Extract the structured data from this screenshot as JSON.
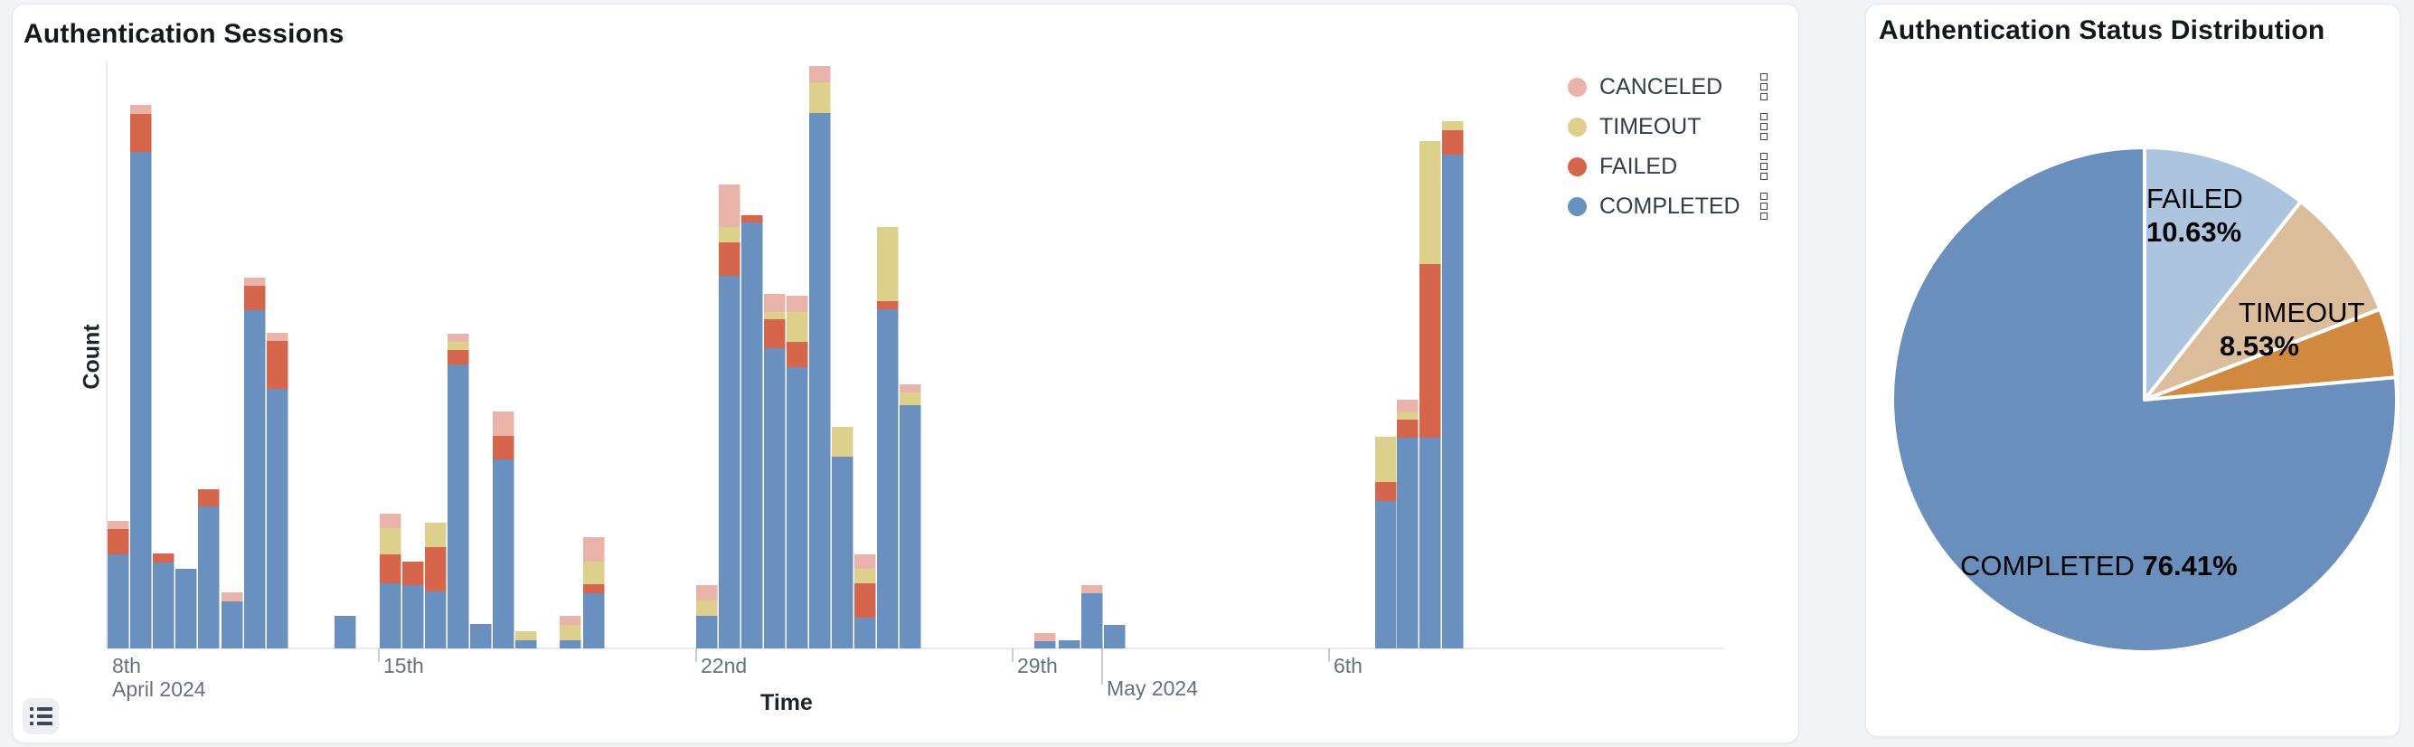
{
  "page": {
    "background": "#f1f3f6"
  },
  "left_card": {
    "title": "Authentication Sessions",
    "y_axis_label": "Count",
    "x_axis_label": "Time",
    "legend": [
      {
        "label": "CANCELED",
        "color": "#e9b3a9"
      },
      {
        "label": "TIMEOUT",
        "color": "#ddd08d"
      },
      {
        "label": "FAILED",
        "color": "#d5664c"
      },
      {
        "label": "COMPLETED",
        "color": "#6a90bf"
      }
    ],
    "legend_menu_icon": "stacked-squares-kebab-icon",
    "list_toggle_icon": "unordered-list-icon",
    "chart_data": {
      "type": "bar",
      "stacked": true,
      "title": "Authentication Sessions",
      "xlabel": "Time",
      "ylabel": "Count",
      "y_axis_unlabeled": true,
      "note": "y values are proportional counts read from pixel heights; x bins are 12-hour periods",
      "plot": {
        "axis_x": 104,
        "baseline_y": 712,
        "plot_right": 1892,
        "plot_top": 58,
        "bar_width": 23.5,
        "axis_color": "#e7e9ed"
      },
      "series_bottom_to_top": [
        "COMPLETED",
        "FAILED",
        "TIMEOUT",
        "CANCELED"
      ],
      "series_colors": {
        "COMPLETED": "#6a90bf",
        "FAILED": "#d5664c",
        "TIMEOUT": "#ddd08d",
        "CANCELED": "#e9b3a9"
      },
      "x_ticks": [
        {
          "x": 105,
          "label": "8th",
          "sublabel": "April 2024",
          "mark": false,
          "long": false
        },
        {
          "x": 405,
          "label": "15th",
          "sublabel": "",
          "mark": true,
          "long": false
        },
        {
          "x": 756,
          "label": "22nd",
          "sublabel": "",
          "mark": true,
          "long": false
        },
        {
          "x": 1106,
          "label": "29th",
          "sublabel": "",
          "mark": true,
          "long": false
        },
        {
          "x": 1205,
          "label": "May 2024",
          "sublabel": "",
          "mark": true,
          "long": true
        },
        {
          "x": 1456,
          "label": "6th",
          "sublabel": "",
          "mark": true,
          "long": false
        }
      ],
      "tick_text_color": "#667082",
      "bars": [
        {
          "x": 105,
          "time": "2024-04-09 00:00",
          "COMPLETED": 104,
          "FAILED": 28,
          "TIMEOUT": 0,
          "CANCELED": 9
        },
        {
          "x": 130,
          "time": "2024-04-09 12:00",
          "COMPLETED": 549,
          "FAILED": 42,
          "TIMEOUT": 0,
          "CANCELED": 10
        },
        {
          "x": 155,
          "time": "2024-04-10 00:00",
          "COMPLETED": 95,
          "FAILED": 10,
          "TIMEOUT": 0,
          "CANCELED": 0
        },
        {
          "x": 180,
          "time": "2024-04-10 12:00",
          "COMPLETED": 88,
          "FAILED": 0,
          "TIMEOUT": 0,
          "CANCELED": 0
        },
        {
          "x": 205,
          "time": "2024-04-11 00:00",
          "COMPLETED": 157,
          "FAILED": 19,
          "TIMEOUT": 0,
          "CANCELED": 0
        },
        {
          "x": 231,
          "time": "2024-04-11 12:00",
          "COMPLETED": 52,
          "FAILED": 0,
          "TIMEOUT": 0,
          "CANCELED": 10
        },
        {
          "x": 256,
          "time": "2024-04-12 00:00",
          "COMPLETED": 374,
          "FAILED": 27,
          "TIMEOUT": 0,
          "CANCELED": 9
        },
        {
          "x": 281,
          "time": "2024-04-12 12:00",
          "COMPLETED": 287,
          "FAILED": 53,
          "TIMEOUT": 0,
          "CANCELED": 9
        },
        {
          "x": 356,
          "time": "2024-04-14 00:00",
          "COMPLETED": 36,
          "FAILED": 0,
          "TIMEOUT": 0,
          "CANCELED": 0
        },
        {
          "x": 406,
          "time": "2024-04-15 00:00",
          "COMPLETED": 72,
          "FAILED": 32,
          "TIMEOUT": 29,
          "CANCELED": 16
        },
        {
          "x": 431,
          "time": "2024-04-15 12:00",
          "COMPLETED": 70,
          "FAILED": 26,
          "TIMEOUT": 0,
          "CANCELED": 0
        },
        {
          "x": 456,
          "time": "2024-04-16 00:00",
          "COMPLETED": 63,
          "FAILED": 49,
          "TIMEOUT": 27,
          "CANCELED": 0
        },
        {
          "x": 481,
          "time": "2024-04-16 12:00",
          "COMPLETED": 314,
          "FAILED": 16,
          "TIMEOUT": 9,
          "CANCELED": 9
        },
        {
          "x": 506,
          "time": "2024-04-17 00:00",
          "COMPLETED": 27,
          "FAILED": 0,
          "TIMEOUT": 0,
          "CANCELED": 0
        },
        {
          "x": 531,
          "time": "2024-04-17 12:00",
          "COMPLETED": 209,
          "FAILED": 26,
          "TIMEOUT": 0,
          "CANCELED": 27
        },
        {
          "x": 556,
          "time": "2024-04-18 00:00",
          "COMPLETED": 9,
          "FAILED": 0,
          "TIMEOUT": 10,
          "CANCELED": 0
        },
        {
          "x": 605,
          "time": "2024-04-19 00:00",
          "COMPLETED": 9,
          "FAILED": 0,
          "TIMEOUT": 17,
          "CANCELED": 10
        },
        {
          "x": 631,
          "time": "2024-04-19 12:00",
          "COMPLETED": 61,
          "FAILED": 10,
          "TIMEOUT": 25,
          "CANCELED": 27
        },
        {
          "x": 756,
          "time": "2024-04-22 00:00",
          "COMPLETED": 36,
          "FAILED": 0,
          "TIMEOUT": 17,
          "CANCELED": 17
        },
        {
          "x": 781,
          "time": "2024-04-22 12:00",
          "COMPLETED": 412,
          "FAILED": 37,
          "TIMEOUT": 17,
          "CANCELED": 47
        },
        {
          "x": 806,
          "time": "2024-04-23 00:00",
          "COMPLETED": 471,
          "FAILED": 8,
          "TIMEOUT": 0,
          "CANCELED": 0
        },
        {
          "x": 831,
          "time": "2024-04-23 12:00",
          "COMPLETED": 332,
          "FAILED": 32,
          "TIMEOUT": 8,
          "CANCELED": 20
        },
        {
          "x": 856,
          "time": "2024-04-24 00:00",
          "COMPLETED": 311,
          "FAILED": 28,
          "TIMEOUT": 33,
          "CANCELED": 18
        },
        {
          "x": 881,
          "time": "2024-04-24 12:00",
          "COMPLETED": 592,
          "FAILED": 0,
          "TIMEOUT": 34,
          "CANCELED": 18
        },
        {
          "x": 906,
          "time": "2024-04-25 00:00",
          "COMPLETED": 212,
          "FAILED": 0,
          "TIMEOUT": 33,
          "CANCELED": 0
        },
        {
          "x": 931,
          "time": "2024-04-25 12:00",
          "COMPLETED": 34,
          "FAILED": 38,
          "TIMEOUT": 16,
          "CANCELED": 16
        },
        {
          "x": 956,
          "time": "2024-04-26 00:00",
          "COMPLETED": 375,
          "FAILED": 9,
          "TIMEOUT": 82,
          "CANCELED": 0
        },
        {
          "x": 981,
          "time": "2024-04-26 12:00",
          "COMPLETED": 269,
          "FAILED": 0,
          "TIMEOUT": 14,
          "CANCELED": 9
        },
        {
          "x": 1130,
          "time": "2024-04-29 12:00",
          "COMPLETED": 8,
          "FAILED": 0,
          "TIMEOUT": 0,
          "CANCELED": 9
        },
        {
          "x": 1157,
          "time": "2024-04-30 00:00",
          "COMPLETED": 9,
          "FAILED": 0,
          "TIMEOUT": 0,
          "CANCELED": 0
        },
        {
          "x": 1182,
          "time": "2024-04-30 12:00",
          "COMPLETED": 61,
          "FAILED": 0,
          "TIMEOUT": 0,
          "CANCELED": 9
        },
        {
          "x": 1207,
          "time": "2024-05-01 00:00",
          "COMPLETED": 26,
          "FAILED": 0,
          "TIMEOUT": 0,
          "CANCELED": 0
        },
        {
          "x": 1507,
          "time": "2024-05-07 00:00",
          "COMPLETED": 163,
          "FAILED": 21,
          "TIMEOUT": 50,
          "CANCELED": 0
        },
        {
          "x": 1531,
          "time": "2024-05-07 12:00",
          "COMPLETED": 233,
          "FAILED": 20,
          "TIMEOUT": 8,
          "CANCELED": 14
        },
        {
          "x": 1556,
          "time": "2024-05-08 00:00",
          "COMPLETED": 233,
          "FAILED": 192,
          "TIMEOUT": 136,
          "CANCELED": 0
        },
        {
          "x": 1581,
          "time": "2024-05-08 12:00",
          "COMPLETED": 546,
          "FAILED": 27,
          "TIMEOUT": 10,
          "CANCELED": 0
        }
      ]
    }
  },
  "right_card": {
    "title": "Authentication Status Distribution",
    "chart_data": {
      "type": "pie",
      "title": "Authentication Status Distribution",
      "center": {
        "x": 308,
        "y": 437
      },
      "radius": 279,
      "start_angle_deg_from_top": 0,
      "direction": "clockwise",
      "separator_color": "#ffffff",
      "slices": [
        {
          "label": "FAILED",
          "pct": 10.63,
          "color": "#adc4de",
          "label_shown": true
        },
        {
          "label": "TIMEOUT",
          "pct": 8.53,
          "color": "#dcbd9b",
          "label_shown": true
        },
        {
          "label": "CANCELED",
          "pct": 4.43,
          "color": "#d0893f",
          "label_shown": false
        },
        {
          "label": "COMPLETED",
          "pct": 76.41,
          "color": "#6b8fbc",
          "label_shown": true
        }
      ],
      "labels": {
        "failed": {
          "line1": "FAILED",
          "line2": "10.63%",
          "x": 310,
          "y": 196
        },
        "timeout": {
          "line1": "TIMEOUT",
          "line2": "8.53%",
          "x": 391,
          "y": 322,
          "indent1": 21
        },
        "completed": {
          "text": "COMPLETED ",
          "pct": "76.41%",
          "x": 104,
          "y": 602
        }
      }
    }
  }
}
